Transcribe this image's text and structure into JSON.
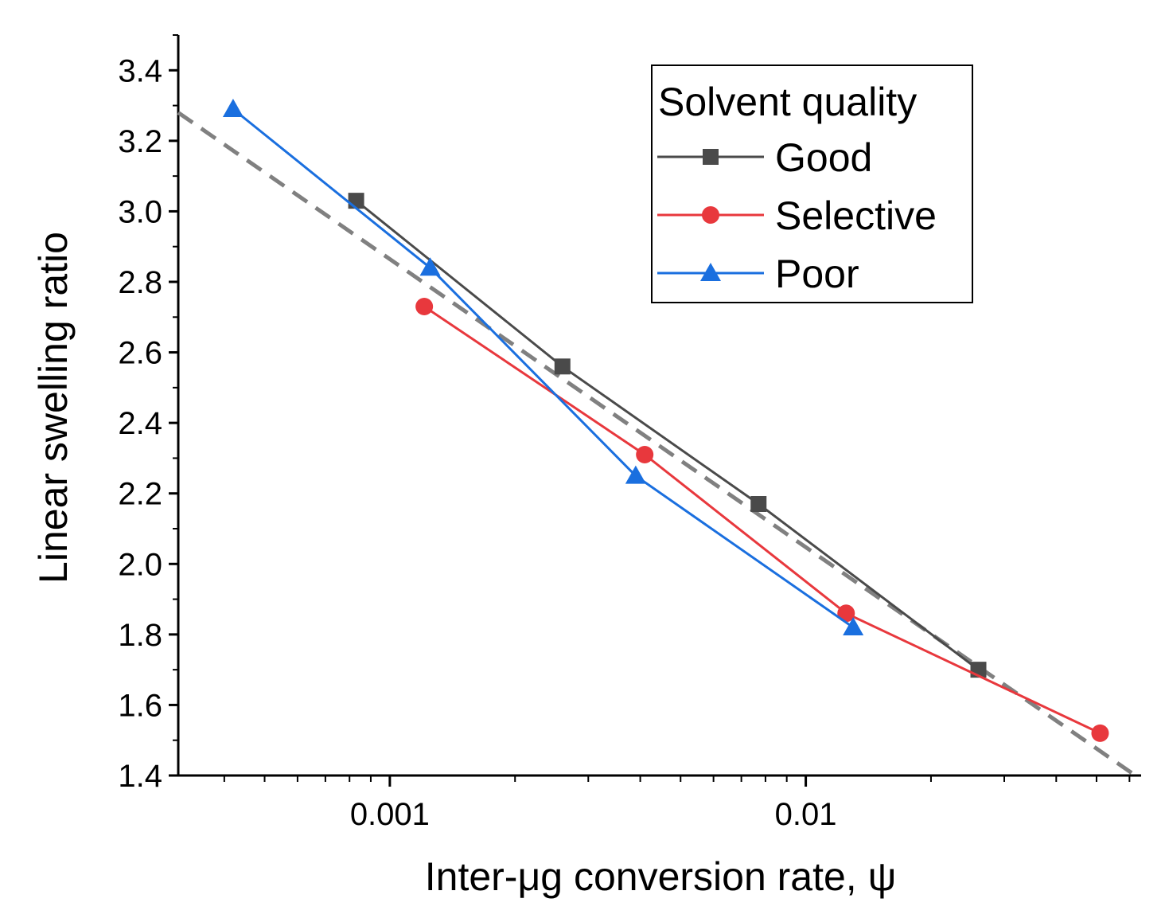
{
  "chart_data": {
    "type": "line",
    "title": "",
    "xlabel": "Inter-μg conversion rate,  ψ",
    "ylabel": "Linear swelling ratio",
    "xscale": "log",
    "xlim": [
      0.00031,
      0.064
    ],
    "ylim": [
      1.4,
      3.5
    ],
    "x_ticks": [
      {
        "value": 0.001,
        "label": "0.001"
      },
      {
        "value": 0.01,
        "label": "0.01"
      }
    ],
    "y_ticks": [
      {
        "value": 1.4,
        "label": "1.4"
      },
      {
        "value": 1.6,
        "label": "1.6"
      },
      {
        "value": 1.8,
        "label": "1.8"
      },
      {
        "value": 2.0,
        "label": "2.0"
      },
      {
        "value": 2.2,
        "label": "2.2"
      },
      {
        "value": 2.4,
        "label": "2.4"
      },
      {
        "value": 2.6,
        "label": "2.6"
      },
      {
        "value": 2.8,
        "label": "2.8"
      },
      {
        "value": 3.0,
        "label": "3.0"
      },
      {
        "value": 3.2,
        "label": "3.2"
      },
      {
        "value": 3.4,
        "label": "3.4"
      }
    ],
    "legend_title": "Solvent quality",
    "legend_position": "top-right",
    "series": [
      {
        "name": "Good",
        "color": "#4a4a4a",
        "marker": "square",
        "x": [
          0.00083,
          0.0026,
          0.0077,
          0.026
        ],
        "y": [
          3.03,
          2.56,
          2.17,
          1.7
        ]
      },
      {
        "name": "Selective",
        "color": "#e8383d",
        "marker": "circle",
        "x": [
          0.00121,
          0.0041,
          0.0125,
          0.051
        ],
        "y": [
          2.73,
          2.31,
          1.86,
          1.52
        ]
      },
      {
        "name": "Poor",
        "color": "#1a6fdf",
        "marker": "triangle",
        "x": [
          0.00042,
          0.00125,
          0.0039,
          0.013
        ],
        "y": [
          3.29,
          2.84,
          2.25,
          1.82
        ]
      }
    ],
    "fit_line": {
      "name": "fit",
      "color": "#808080",
      "style": "dashed",
      "x": [
        0.00031,
        0.062
      ],
      "y": [
        3.28,
        1.4
      ]
    }
  }
}
